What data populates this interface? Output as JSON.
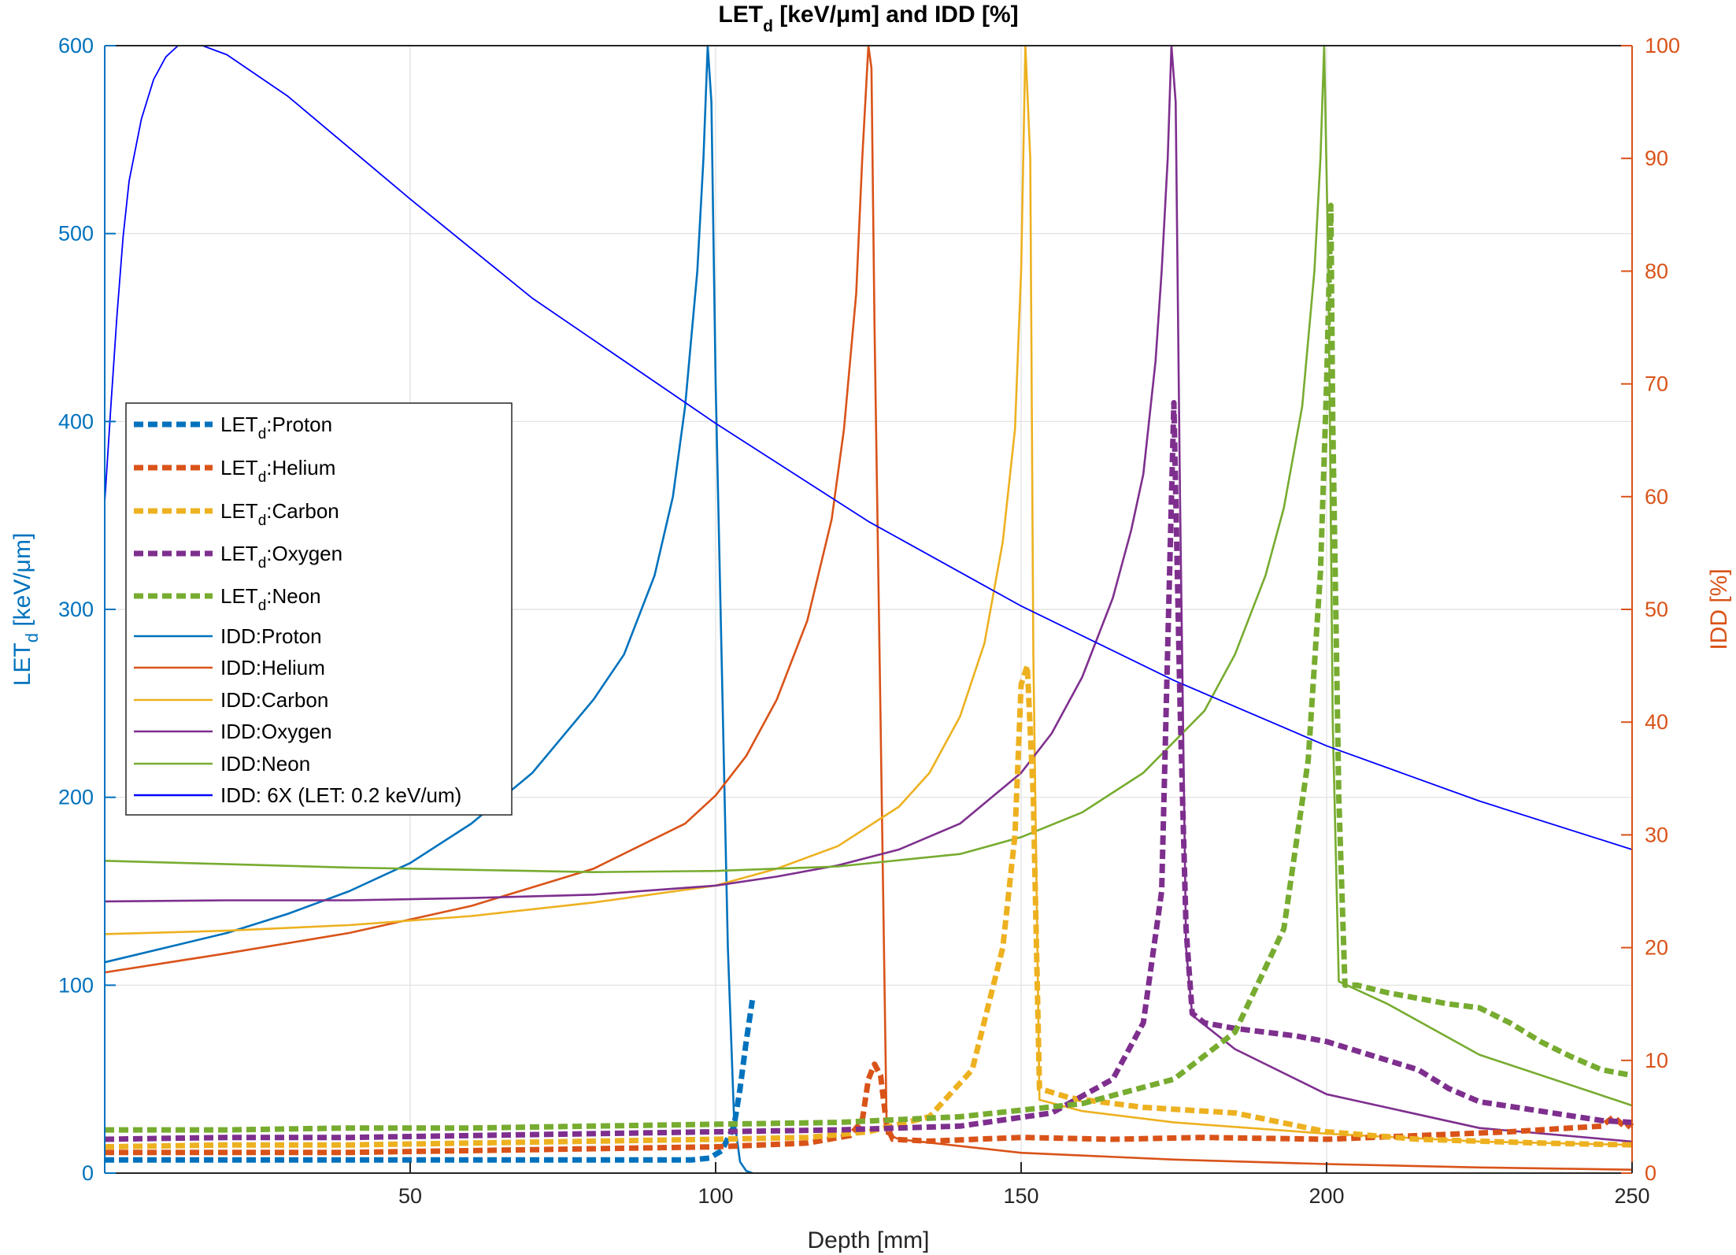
{
  "chart_data": {
    "type": "line",
    "title": "LET_d [keV/μm] and IDD [%]",
    "xlabel": "Depth [mm]",
    "ylabel_left": "LET_d [keV/μm]",
    "ylabel_right": "IDD [%]",
    "xlim": [
      0,
      250
    ],
    "ylim_left": [
      0,
      600
    ],
    "ylim_right": [
      0,
      100
    ],
    "xticks": [
      50,
      100,
      150,
      200,
      250
    ],
    "yticks_left": [
      0,
      100,
      200,
      300,
      400,
      500,
      600
    ],
    "yticks_right": [
      0,
      10,
      20,
      30,
      40,
      50,
      60,
      70,
      80,
      90,
      100
    ],
    "grid": true,
    "legend_position": "center-left",
    "axis_colors": {
      "left": "#0072BD",
      "right": "#D95319"
    },
    "series": [
      {
        "name": "LET_d:Proton",
        "axis": "left",
        "style": "dashed",
        "color": "#0072BD",
        "x": [
          0,
          20,
          40,
          60,
          80,
          96,
          99,
          101,
          103,
          104,
          105,
          106
        ],
        "y": [
          7,
          7,
          7,
          7,
          7,
          7,
          8,
          12,
          25,
          45,
          70,
          92
        ]
      },
      {
        "name": "LET_d:Helium",
        "axis": "left",
        "style": "dashed",
        "color": "#D95319",
        "x": [
          0,
          20,
          40,
          60,
          80,
          100,
          115,
          122,
          124,
          125,
          126,
          127,
          128,
          129,
          135,
          150,
          165,
          180,
          200,
          215,
          230,
          245,
          247,
          249,
          250
        ],
        "y": [
          11,
          11,
          11,
          12,
          13,
          14,
          16,
          20,
          28,
          50,
          58,
          52,
          25,
          18,
          17,
          19,
          18,
          19,
          18,
          20,
          22,
          25,
          30,
          24,
          27
        ]
      },
      {
        "name": "LET_d:Carbon",
        "axis": "left",
        "style": "dashed",
        "color": "#EDB120",
        "x": [
          0,
          20,
          40,
          60,
          80,
          100,
          115,
          125,
          135,
          142,
          147,
          149,
          150,
          151,
          152,
          153,
          158,
          170,
          185,
          200,
          215,
          235,
          250
        ],
        "y": [
          14,
          15,
          15,
          16,
          17,
          18,
          19,
          22,
          30,
          55,
          120,
          180,
          260,
          270,
          200,
          45,
          40,
          35,
          32,
          22,
          18,
          16,
          15
        ]
      },
      {
        "name": "LET_d:Oxygen",
        "axis": "left",
        "style": "dashed",
        "color": "#7E2F8E",
        "x": [
          0,
          20,
          40,
          60,
          80,
          100,
          120,
          140,
          155,
          165,
          170,
          173,
          174,
          175,
          176,
          177,
          178,
          180,
          185,
          190,
          195,
          200,
          205,
          210,
          215,
          220,
          225,
          235,
          245,
          250
        ],
        "y": [
          18,
          19,
          19,
          20,
          21,
          22,
          23,
          25,
          32,
          50,
          80,
          150,
          280,
          410,
          250,
          130,
          85,
          80,
          77,
          75,
          73,
          70,
          65,
          60,
          55,
          45,
          38,
          33,
          28,
          27
        ]
      },
      {
        "name": "LET_d:Neon",
        "axis": "left",
        "style": "dashed",
        "color": "#77AC30",
        "x": [
          0,
          20,
          40,
          60,
          80,
          100,
          120,
          140,
          160,
          175,
          185,
          193,
          197,
          199,
          200,
          200.7,
          201,
          202,
          203,
          205,
          210,
          220,
          225,
          230,
          235,
          240,
          245,
          250
        ],
        "y": [
          23,
          23,
          24,
          24,
          25,
          26,
          27,
          30,
          37,
          50,
          75,
          130,
          220,
          320,
          420,
          515,
          400,
          200,
          100,
          100,
          96,
          90,
          88,
          80,
          70,
          62,
          55,
          52
        ]
      },
      {
        "name": "IDD:Proton",
        "axis": "right",
        "style": "solid",
        "color": "#0072BD",
        "x": [
          0,
          10,
          20,
          30,
          40,
          50,
          60,
          70,
          80,
          85,
          90,
          93,
          95,
          97,
          98,
          98.7,
          99.3,
          100,
          101,
          102,
          103,
          104,
          105,
          106
        ],
        "y": [
          18.7,
          20,
          21.3,
          23,
          25,
          27.5,
          31,
          35.5,
          42,
          46,
          53,
          60,
          68,
          80,
          90,
          100,
          95,
          70,
          45,
          20,
          5,
          1,
          0.2,
          0
        ]
      },
      {
        "name": "IDD:Helium",
        "axis": "right",
        "style": "solid",
        "color": "#D95319",
        "x": [
          0,
          20,
          40,
          60,
          80,
          95,
          100,
          105,
          110,
          115,
          119,
          121,
          123,
          124,
          125,
          125.5,
          126,
          127,
          128,
          130,
          150,
          175,
          200,
          225,
          250
        ],
        "y": [
          17.8,
          19.5,
          21.3,
          23.7,
          27,
          31,
          33.5,
          37,
          42,
          49,
          58,
          66,
          78,
          90,
          100,
          98,
          75,
          40,
          3.5,
          3,
          1.8,
          1.2,
          0.8,
          0.5,
          0.3
        ]
      },
      {
        "name": "IDD:Carbon",
        "axis": "right",
        "style": "solid",
        "color": "#EDB120",
        "x": [
          0,
          20,
          40,
          60,
          80,
          100,
          110,
          120,
          130,
          135,
          140,
          144,
          147,
          149,
          150,
          150.7,
          151.5,
          152,
          153,
          160,
          175,
          200,
          225,
          250
        ],
        "y": [
          21.2,
          21.5,
          22,
          22.8,
          24,
          25.5,
          27,
          29,
          32.5,
          35.5,
          40.5,
          47,
          56,
          66,
          80,
          100,
          90,
          46,
          6.5,
          5.5,
          4.5,
          3.5,
          2.8,
          2.5
        ]
      },
      {
        "name": "IDD:Oxygen",
        "axis": "right",
        "style": "solid",
        "color": "#7E2F8E",
        "x": [
          0,
          20,
          40,
          60,
          80,
          100,
          110,
          120,
          130,
          140,
          150,
          155,
          160,
          165,
          168,
          170,
          172,
          173,
          174,
          174.6,
          175.3,
          176,
          177,
          178,
          185,
          200,
          225,
          250
        ],
        "y": [
          24.1,
          24.2,
          24.2,
          24.4,
          24.7,
          25.5,
          26.3,
          27.3,
          28.7,
          31,
          35.5,
          39,
          44,
          51,
          57,
          62,
          72,
          80,
          90,
          100,
          95,
          60,
          20,
          14,
          11,
          7,
          4,
          2.8
        ]
      },
      {
        "name": "IDD:Neon",
        "axis": "right",
        "style": "solid",
        "color": "#77AC30",
        "x": [
          0,
          20,
          40,
          60,
          80,
          100,
          120,
          140,
          150,
          160,
          170,
          180,
          185,
          190,
          193,
          196,
          198,
          199,
          199.6,
          200.3,
          201,
          202,
          210,
          225,
          250
        ],
        "y": [
          27.7,
          27.4,
          27.1,
          26.9,
          26.7,
          26.8,
          27.2,
          28.3,
          29.8,
          32,
          35.5,
          41,
          46,
          53,
          59,
          68,
          80,
          90,
          100,
          80,
          40,
          17,
          15,
          10.5,
          6
        ]
      },
      {
        "name": "IDD: 6X (LET: 0.2 keV/um)",
        "axis": "right",
        "style": "solid",
        "color": "#0000FF",
        "x": [
          0,
          1,
          2,
          3,
          4,
          6,
          8,
          10,
          12,
          14,
          16,
          20,
          30,
          50,
          70,
          100,
          125,
          150,
          175,
          200,
          225,
          250
        ],
        "y": [
          59.5,
          68,
          76,
          83,
          88,
          93.5,
          97,
          99,
          100,
          100,
          100,
          99.2,
          95.5,
          86.4,
          77.6,
          66.5,
          57.8,
          50.3,
          43.7,
          37.9,
          33,
          28.7
        ]
      }
    ]
  }
}
